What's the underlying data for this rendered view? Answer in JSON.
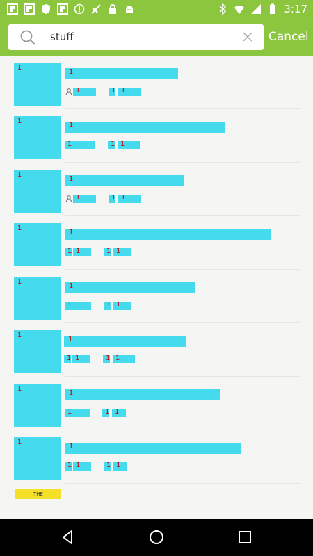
{
  "status_bar": {
    "time": "3:17"
  },
  "search": {
    "query": "stuff",
    "cancel_label": "Cancel"
  },
  "results": [
    {
      "thumb": "1",
      "title": "1",
      "meta_a": "1",
      "meta_b": "1",
      "meta_c": "1"
    },
    {
      "thumb": "1",
      "title": "1",
      "meta_a": "1",
      "meta_b": "1",
      "meta_c": "1"
    },
    {
      "thumb": "1",
      "title": "1",
      "meta_a": "1",
      "meta_b": "1",
      "meta_c": "1"
    },
    {
      "thumb": "1",
      "title": "1",
      "meta_a": "1",
      "meta_b": "1",
      "meta_c": "1"
    },
    {
      "thumb": "1",
      "title": "1",
      "meta_a": "1",
      "meta_b": "1",
      "meta_c": "1"
    },
    {
      "thumb": "1",
      "title": "1",
      "meta_a": "1",
      "meta_b": "1",
      "meta_c": "1"
    },
    {
      "thumb": "1",
      "title": "1",
      "meta_a": "1",
      "meta_b": "1",
      "meta_c": "1"
    },
    {
      "thumb": "1",
      "title": "1",
      "meta_a": "1",
      "meta_b": "1",
      "meta_c": "1"
    }
  ],
  "promo_label": "THE"
}
